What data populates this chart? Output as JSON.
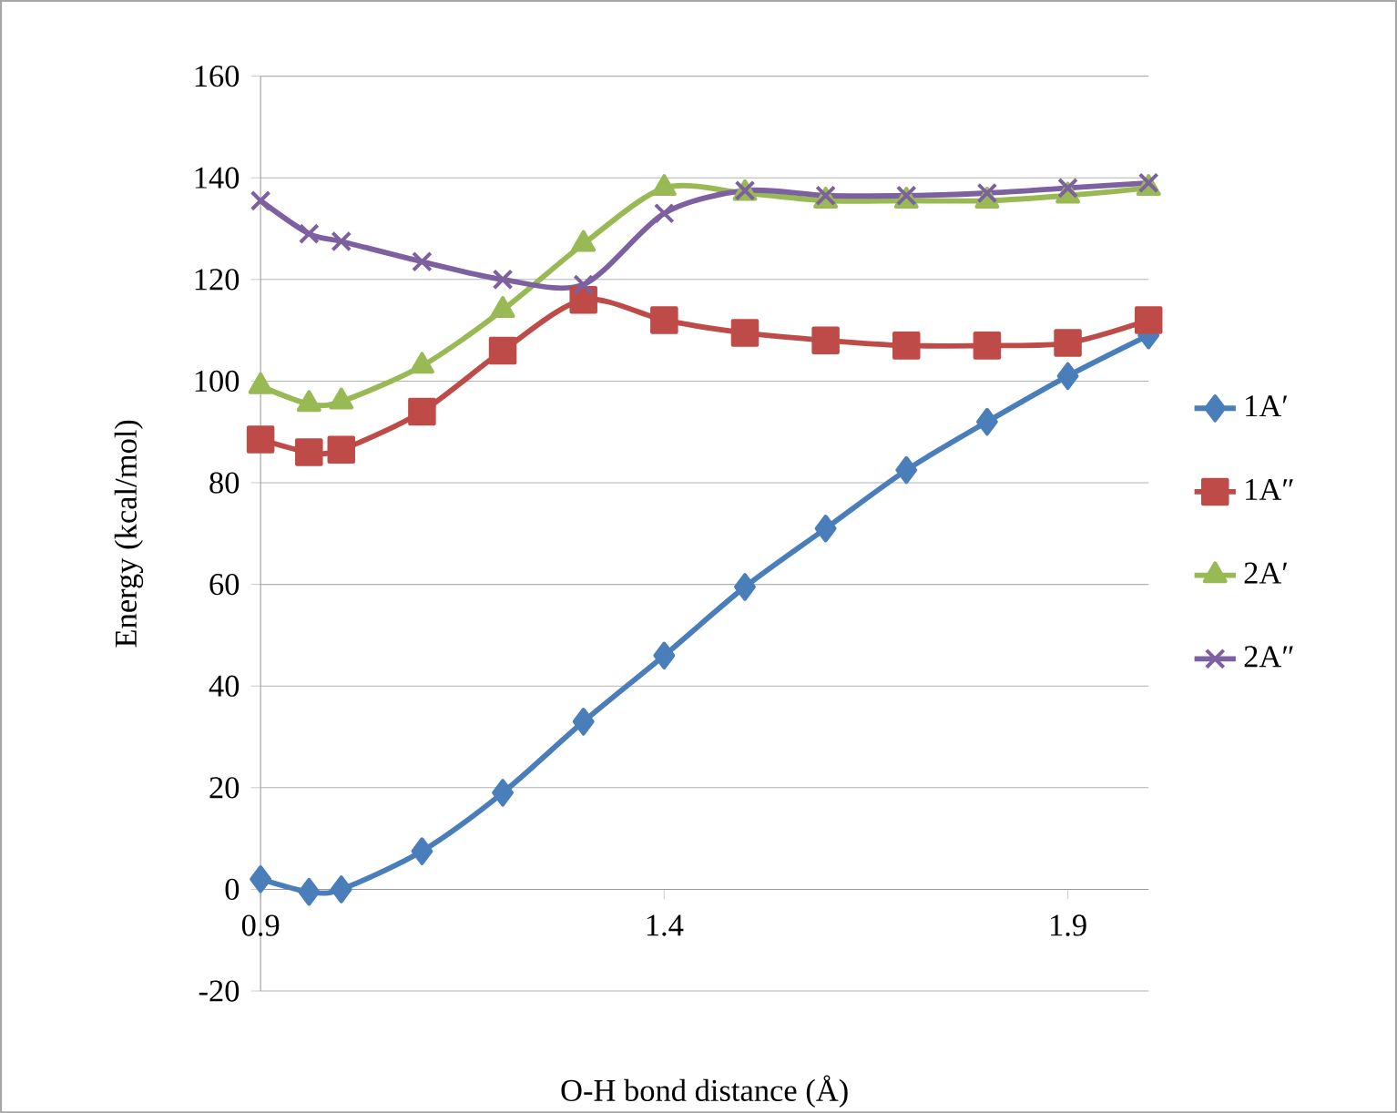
{
  "chart_data": {
    "type": "line",
    "xlabel": "O-H bond distance  (Å)",
    "ylabel": "Energy (kcal/mol)",
    "xlim": [
      0.9,
      2.0
    ],
    "xticks": [
      0.9,
      1.4,
      1.9
    ],
    "ylim": [
      -20,
      160
    ],
    "yticks": [
      -20,
      0,
      20,
      40,
      60,
      80,
      100,
      120,
      140,
      160
    ],
    "grid": "y",
    "legend": "right",
    "series": [
      {
        "name": "1A′",
        "color": "#4a7ebb",
        "marker": "diamond",
        "x": [
          0.9,
          0.96,
          1.0,
          1.1,
          1.2,
          1.3,
          1.4,
          1.5,
          1.6,
          1.7,
          1.8,
          1.9,
          2.0
        ],
        "values": [
          2,
          -0.5,
          0,
          7.5,
          19,
          33,
          46,
          59.5,
          71,
          82.5,
          92,
          101,
          109
        ]
      },
      {
        "name": "1A″",
        "color": "#be4b48",
        "marker": "square",
        "x": [
          0.9,
          0.96,
          1.0,
          1.1,
          1.2,
          1.3,
          1.4,
          1.5,
          1.6,
          1.7,
          1.8,
          1.9,
          2.0
        ],
        "values": [
          88.5,
          86,
          86.5,
          94,
          106,
          116,
          112,
          109.5,
          108,
          107,
          107,
          107.5,
          112
        ]
      },
      {
        "name": "2A′",
        "color": "#98b954",
        "marker": "triangle",
        "x": [
          0.9,
          0.96,
          1.0,
          1.1,
          1.2,
          1.3,
          1.4,
          1.5,
          1.6,
          1.7,
          1.8,
          1.9,
          2.0
        ],
        "values": [
          99,
          95.5,
          96,
          103,
          114,
          127,
          138,
          137,
          135.5,
          135.5,
          135.5,
          136.5,
          138
        ]
      },
      {
        "name": "2A″",
        "color": "#7d60a0",
        "marker": "cross",
        "x": [
          0.9,
          0.96,
          1.0,
          1.1,
          1.2,
          1.3,
          1.4,
          1.5,
          1.6,
          1.7,
          1.8,
          1.9,
          2.0
        ],
        "values": [
          135.5,
          129,
          127.5,
          123.5,
          120,
          119,
          133,
          137.5,
          136.5,
          136.5,
          137,
          138,
          139
        ]
      }
    ]
  }
}
